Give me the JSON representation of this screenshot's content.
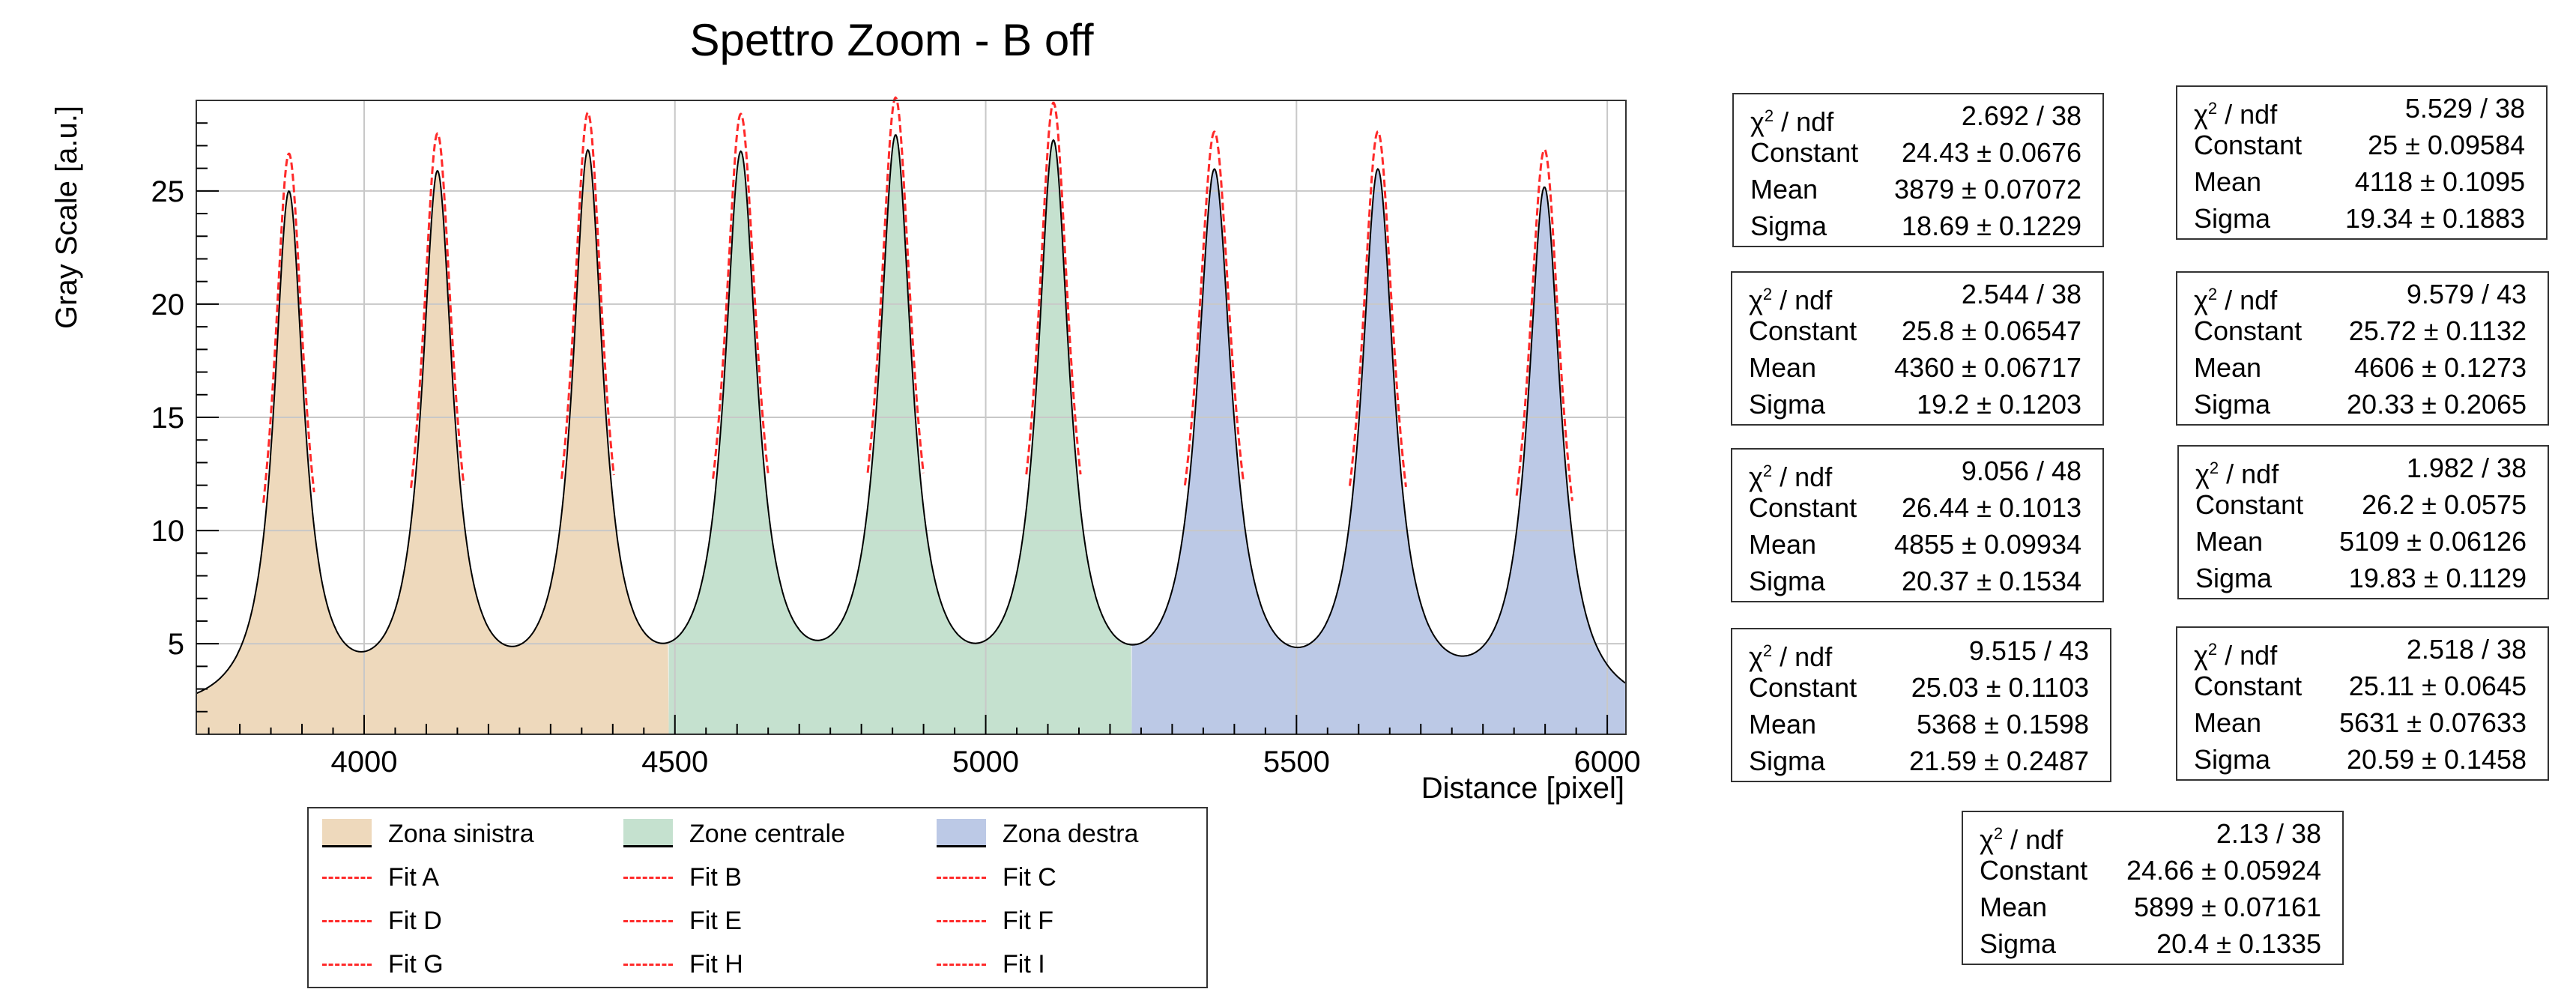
{
  "chart_data": {
    "type": "area",
    "title": "Spettro Zoom - B off",
    "xlabel": "Distance [pixel]",
    "ylabel": "Gray Scale [a.u.]",
    "xlim": [
      3730,
      6030
    ],
    "ylim": [
      1,
      29
    ],
    "x_ticks": [
      4000,
      4500,
      5000,
      5500,
      6000
    ],
    "y_ticks": [
      5,
      10,
      15,
      20,
      25
    ],
    "grid": true,
    "legend_position": "bottom",
    "baseline": 1.7,
    "zones": [
      {
        "name": "Zona sinistra",
        "color": "#eed9bc",
        "x_from": 3730,
        "x_to": 4490
      },
      {
        "name": "Zone centrale",
        "color": "#c5e1cf",
        "x_from": 4490,
        "x_to": 5235
      },
      {
        "name": "Zona destra",
        "color": "#bcc9e6",
        "x_from": 5235,
        "x_to": 6030
      }
    ],
    "fits": [
      {
        "name": "Fit A",
        "chi2_ndf": "2.692 / 38",
        "constant": "24.43 ± 0.0676",
        "mean": "3879 ± 0.07072",
        "sigma": "18.69 ± 0.1229",
        "peak_x": 3879,
        "peak_y": 24.43,
        "sigma_value": 18.69
      },
      {
        "name": "Fit B",
        "chi2_ndf": "5.529 / 38",
        "constant": "25 ± 0.09584",
        "mean": "4118 ± 0.1095",
        "sigma": "19.34 ± 0.1883",
        "peak_x": 4118,
        "peak_y": 25.0,
        "sigma_value": 19.34
      },
      {
        "name": "Fit C",
        "chi2_ndf": "2.544 / 38",
        "constant": "25.8 ± 0.06547",
        "mean": "4360 ± 0.06717",
        "sigma": "19.2 ± 0.1203",
        "peak_x": 4360,
        "peak_y": 25.8,
        "sigma_value": 19.2
      },
      {
        "name": "Fit D",
        "chi2_ndf": "9.579 / 43",
        "constant": "25.72 ± 0.1132",
        "mean": "4606 ± 0.1273",
        "sigma": "20.33 ± 0.2065",
        "peak_x": 4606,
        "peak_y": 25.72,
        "sigma_value": 20.33
      },
      {
        "name": "Fit E",
        "chi2_ndf": "9.056 / 48",
        "constant": "26.44 ± 0.1013",
        "mean": "4855 ± 0.09934",
        "sigma": "20.37 ± 0.1534",
        "peak_x": 4855,
        "peak_y": 26.44,
        "sigma_value": 20.37
      },
      {
        "name": "Fit F",
        "chi2_ndf": "1.982 / 38",
        "constant": "26.2 ± 0.0575",
        "mean": "5109 ± 0.06126",
        "sigma": "19.83 ± 0.1129",
        "peak_x": 5109,
        "peak_y": 26.2,
        "sigma_value": 19.83
      },
      {
        "name": "Fit G",
        "chi2_ndf": "9.515 / 43",
        "constant": "25.03 ± 0.1103",
        "mean": "5368 ± 0.1598",
        "sigma": "21.59 ± 0.2487",
        "peak_x": 5368,
        "peak_y": 25.03,
        "sigma_value": 21.59
      },
      {
        "name": "Fit H",
        "chi2_ndf": "2.518 / 38",
        "constant": "25.11 ± 0.0645",
        "mean": "5631 ± 0.07633",
        "sigma": "20.59 ± 0.1458",
        "peak_x": 5631,
        "peak_y": 25.11,
        "sigma_value": 20.59
      },
      {
        "name": "Fit I",
        "chi2_ndf": "2.13 / 38",
        "constant": "24.66 ± 0.05924",
        "mean": "5899 ± 0.07161",
        "sigma": "20.4 ± 0.1335",
        "peak_x": 5899,
        "peak_y": 24.66,
        "sigma_value": 20.4
      }
    ],
    "stat_labels": {
      "chi2": "χ",
      "chi2_sup": "2",
      "chi2_rest": " / ndf",
      "constant": "Constant",
      "mean": "Mean",
      "sigma": "Sigma"
    },
    "colors": {
      "fit_line": "#ff2a2a",
      "data_line": "#000000",
      "grid": "#c8c8c8",
      "frame": "#333333"
    }
  }
}
